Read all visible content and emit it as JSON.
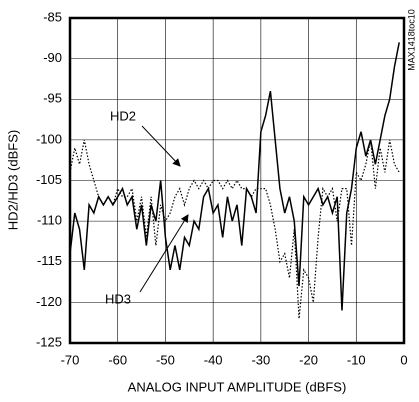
{
  "chart_data": {
    "type": "line",
    "x_label": "ANALOG INPUT AMPLITUDE (dBFS)",
    "y_label": "HD2/HD3 (dBFS)",
    "side_note": "MAX1418toc10",
    "x": [
      -70,
      -69,
      -68,
      -67,
      -66,
      -65,
      -64,
      -63,
      -62,
      -61,
      -60,
      -59,
      -58,
      -57,
      -56,
      -55,
      -54,
      -53,
      -52,
      -51,
      -50,
      -49,
      -48,
      -47,
      -46,
      -45,
      -44,
      -43,
      -42,
      -41,
      -40,
      -39,
      -38,
      -37,
      -36,
      -35,
      -34,
      -33,
      -32,
      -31,
      -30,
      -29,
      -28,
      -27,
      -26,
      -25,
      -24,
      -23,
      -22,
      -21,
      -20,
      -19,
      -18,
      -17,
      -16,
      -15,
      -14,
      -13,
      -12,
      -11,
      -10,
      -9,
      -8,
      -7,
      -6,
      -5,
      -4,
      -3,
      -2,
      -1
    ],
    "series": [
      {
        "name": "HD2",
        "color": "#000000",
        "line_style": "dotted",
        "values": [
          -104,
          -101,
          -103,
          -100,
          -103,
          -105,
          -107,
          -108,
          -107,
          -108,
          -106,
          -107,
          -107,
          -106,
          -110,
          -107,
          -112,
          -107,
          -113,
          -108,
          -110,
          -109,
          -107,
          -106,
          -108,
          -106,
          -105,
          -106,
          -105,
          -106,
          -105,
          -105,
          -106,
          -105,
          -106,
          -105,
          -106,
          -106,
          -107,
          -106,
          -106,
          -106,
          -108,
          -111,
          -115,
          -114,
          -117,
          -111,
          -122,
          -116,
          -117,
          -120,
          -112,
          -106,
          -107,
          -106,
          -110,
          -106,
          -106,
          -113,
          -104,
          -105,
          -103,
          -100,
          -106,
          -101,
          -104,
          -100,
          -103,
          -104
        ]
      },
      {
        "name": "HD3",
        "color": "#000000",
        "line_style": "solid",
        "values": [
          -114,
          -109,
          -111,
          -116,
          -108,
          -109,
          -107,
          -108,
          -107,
          -108,
          -107,
          -106,
          -108,
          -107,
          -111,
          -108,
          -113,
          -108,
          -110,
          -105,
          -112,
          -116,
          -113,
          -116,
          -112,
          -113,
          -110,
          -111,
          -107,
          -106,
          -109,
          -108,
          -112,
          -107,
          -110,
          -108,
          -113,
          -106,
          -107,
          -109,
          -99,
          -97,
          -94,
          -100,
          -106,
          -109,
          -107,
          -110,
          -118,
          -107,
          -108,
          -107,
          -106,
          -108,
          -107,
          -109,
          -107,
          -121,
          -109,
          -106,
          -101,
          -99,
          -102,
          -100,
          -103,
          -100,
          -97,
          -95,
          -91,
          -88
        ]
      }
    ],
    "xlim": [
      -70,
      0
    ],
    "ylim": [
      -125,
      -85
    ],
    "xticks": [
      -70,
      -60,
      -50,
      -40,
      -30,
      -20,
      -10,
      0
    ],
    "yticks": [
      -125,
      -120,
      -115,
      -110,
      -105,
      -100,
      -95,
      -90,
      -85
    ],
    "grid": true
  }
}
